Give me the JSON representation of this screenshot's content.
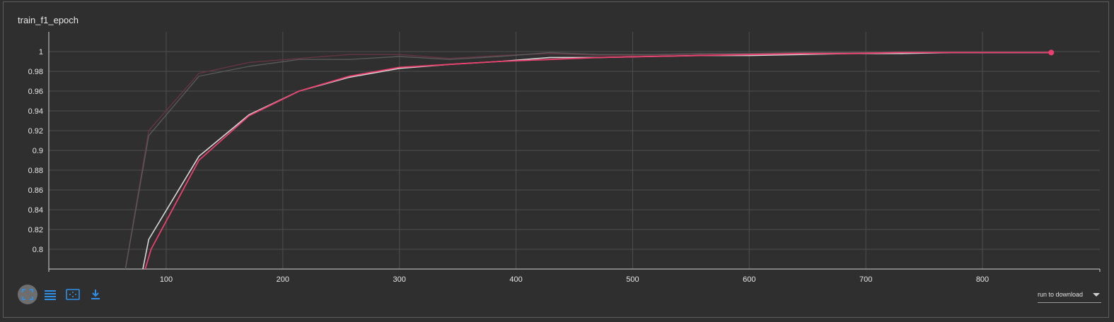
{
  "card": {
    "title": "train_f1_epoch"
  },
  "toolbar": {
    "fit_icon": "fit-domain-icon",
    "log_icon": "toggle-y-log-icon",
    "expand_icon": "expand-icon",
    "download_icon": "download-icon",
    "download_label": "run to download"
  },
  "colors": {
    "background": "#2f2f2f",
    "grid": "#4d4d4d",
    "run_pink": "#ea3f6f",
    "run_white": "#d8d8d8",
    "toolbar_blue": "#2f8fe8"
  },
  "chart_data": {
    "type": "line",
    "title": "",
    "xlabel": "",
    "ylabel": "",
    "xlim": [
      0,
      805
    ],
    "ylim": [
      0.78,
      1.02
    ],
    "x_ticks": [
      "100",
      "200",
      "300",
      "400",
      "500",
      "600",
      "700",
      "800"
    ],
    "y_ticks": [
      "0.8",
      "0.82",
      "0.84",
      "0.86",
      "0.88",
      "0.9",
      "0.92",
      "0.94",
      "0.96",
      "0.98",
      "1"
    ],
    "grid": true,
    "series": [
      {
        "name": "",
        "style": "raw",
        "x": [
          65,
          85,
          128,
          171,
          214,
          257,
          300,
          343,
          386,
          429,
          472,
          515,
          558,
          601,
          644,
          687,
          730,
          773,
          816,
          859
        ],
        "y": [
          0.78,
          0.92,
          0.978,
          0.989,
          0.993,
          0.997,
          0.997,
          0.993,
          0.996,
          0.998,
          0.996,
          0.996,
          0.997,
          0.998,
          0.998,
          0.999,
          0.999,
          0.999,
          0.999,
          0.999
        ]
      },
      {
        "name": "",
        "style": "raw",
        "x": [
          65,
          85,
          128,
          171,
          214,
          257,
          300,
          343,
          386,
          429,
          472,
          515,
          558,
          601,
          644,
          687,
          730,
          773,
          816,
          859
        ],
        "y": [
          0.78,
          0.915,
          0.975,
          0.985,
          0.992,
          0.992,
          0.995,
          0.992,
          0.995,
          0.999,
          0.997,
          0.997,
          0.998,
          0.998,
          0.999,
          0.999,
          0.999,
          0.999,
          0.999,
          0.999
        ]
      },
      {
        "name": "",
        "style": "smoothed",
        "x": [
          80,
          85,
          128,
          171,
          214,
          257,
          300,
          343,
          386,
          429,
          472,
          515,
          558,
          601,
          644,
          687,
          730,
          773,
          816,
          859
        ],
        "y": [
          0.78,
          0.81,
          0.894,
          0.936,
          0.96,
          0.974,
          0.983,
          0.987,
          0.99,
          0.994,
          0.994,
          0.995,
          0.996,
          0.996,
          0.997,
          0.998,
          0.998,
          0.999,
          0.999,
          0.999
        ]
      },
      {
        "name": "",
        "style": "smoothed",
        "x": [
          82,
          87,
          128,
          171,
          214,
          257,
          300,
          343,
          386,
          429,
          472,
          515,
          558,
          601,
          644,
          687,
          730,
          773,
          816,
          859
        ],
        "y": [
          0.78,
          0.8,
          0.89,
          0.935,
          0.96,
          0.975,
          0.984,
          0.987,
          0.99,
          0.992,
          0.994,
          0.995,
          0.996,
          0.997,
          0.998,
          0.998,
          0.999,
          0.999,
          0.999,
          0.999
        ]
      }
    ]
  }
}
